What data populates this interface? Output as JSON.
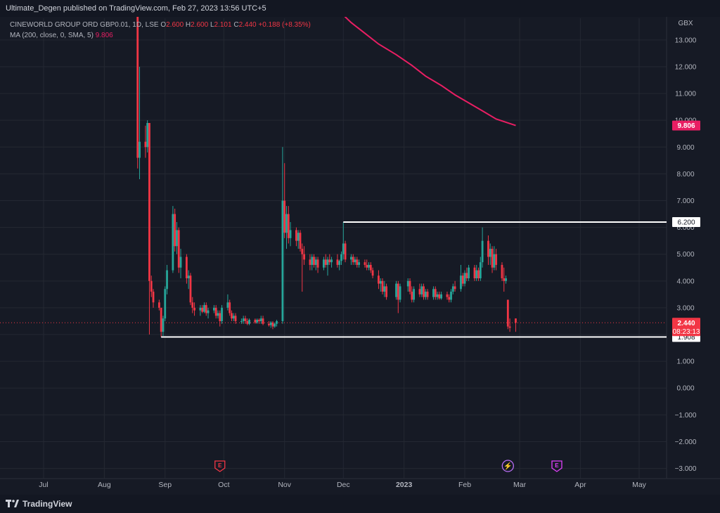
{
  "header": {
    "published_by": "Ultimate_Degen published on TradingView.com, Feb 27, 2023 13:56 UTC+5"
  },
  "legend": {
    "symbol": "CINEWORLD GROUP ORD GBP0.01, 1D, LSE",
    "open_label": "O",
    "open": "2.600",
    "high_label": "H",
    "high": "2.600",
    "low_label": "L",
    "low": "2.101",
    "close_label": "C",
    "close": "2.440",
    "change": "+0.188 (+8.35%)",
    "ma_label": "MA (200, close, 0, SMA, 5)",
    "ma_value": "9.806"
  },
  "footer": {
    "brand": "TradingView"
  },
  "colors": {
    "up": "#26a69a",
    "down": "#f23645",
    "ma": "#e91e63",
    "grid": "#242832",
    "bg": "#161a25"
  },
  "chart_data": {
    "type": "candlestick",
    "currency": "GBX",
    "ylim": [
      -3.3,
      13.6
    ],
    "y_ticks": [
      13,
      12,
      11,
      10,
      9,
      8,
      7,
      6,
      5,
      4,
      3,
      2,
      1,
      0,
      -1,
      -2,
      -3
    ],
    "x_ticks": [
      {
        "label": "Jul",
        "date": "2022-07-01"
      },
      {
        "label": "Aug",
        "date": "2022-08-01"
      },
      {
        "label": "Sep",
        "date": "2022-09-01"
      },
      {
        "label": "Oct",
        "date": "2022-10-01"
      },
      {
        "label": "Nov",
        "date": "2022-11-01"
      },
      {
        "label": "Dec",
        "date": "2022-12-01"
      },
      {
        "label": "2023",
        "date": "2023-01-01"
      },
      {
        "label": "Feb",
        "date": "2023-02-01"
      },
      {
        "label": "Mar",
        "date": "2023-03-01"
      },
      {
        "label": "Apr",
        "date": "2023-04-01"
      },
      {
        "label": "May",
        "date": "2023-05-01"
      }
    ],
    "candles": [
      [
        "2022-08-18",
        14.2,
        15.0,
        8.2,
        8.6
      ],
      [
        "2022-08-19",
        8.6,
        12.0,
        7.8,
        9.2
      ],
      [
        "2022-08-22",
        9.2,
        9.8,
        8.6,
        9.0
      ],
      [
        "2022-08-23",
        9.0,
        10.0,
        8.8,
        9.9
      ],
      [
        "2022-08-24",
        9.9,
        9.9,
        2.0,
        4.0
      ],
      [
        "2022-08-25",
        4.0,
        4.2,
        3.4,
        3.6
      ],
      [
        "2022-08-26",
        3.6,
        3.7,
        3.0,
        3.2
      ],
      [
        "2022-08-29",
        3.2,
        3.3,
        2.9,
        3.0
      ],
      [
        "2022-08-30",
        3.0,
        3.0,
        1.908,
        2.1
      ],
      [
        "2022-08-31",
        2.1,
        2.7,
        1.95,
        2.6
      ],
      [
        "2022-09-01",
        2.6,
        3.8,
        2.5,
        3.7
      ],
      [
        "2022-09-02",
        3.7,
        4.6,
        3.5,
        4.4
      ],
      [
        "2022-09-05",
        4.4,
        6.8,
        4.3,
        6.5
      ],
      [
        "2022-09-06",
        6.5,
        6.7,
        5.1,
        5.3
      ],
      [
        "2022-09-07",
        5.3,
        6.2,
        5.0,
        5.9
      ],
      [
        "2022-09-08",
        5.9,
        6.0,
        4.3,
        4.5
      ],
      [
        "2022-09-09",
        4.5,
        5.2,
        4.1,
        4.9
      ],
      [
        "2022-09-12",
        4.9,
        5.0,
        3.9,
        4.1
      ],
      [
        "2022-09-13",
        4.1,
        4.4,
        3.7,
        4.2
      ],
      [
        "2022-09-14",
        4.2,
        4.3,
        3.1,
        3.2
      ],
      [
        "2022-09-15",
        3.2,
        3.4,
        2.8,
        3.0
      ],
      [
        "2022-09-16",
        3.0,
        3.2,
        2.7,
        2.9
      ],
      [
        "2022-09-19",
        2.9,
        3.1,
        2.7,
        3.0
      ],
      [
        "2022-09-20",
        3.0,
        3.1,
        2.8,
        2.85
      ],
      [
        "2022-09-21",
        2.85,
        3.2,
        2.8,
        3.1
      ],
      [
        "2022-09-22",
        3.1,
        3.2,
        2.7,
        2.8
      ],
      [
        "2022-09-23",
        2.8,
        3.0,
        2.6,
        2.9
      ],
      [
        "2022-09-26",
        2.9,
        3.1,
        2.8,
        3.0
      ],
      [
        "2022-09-27",
        3.0,
        3.1,
        2.6,
        2.7
      ],
      [
        "2022-09-28",
        2.7,
        2.9,
        2.6,
        2.8
      ],
      [
        "2022-09-29",
        2.8,
        2.9,
        2.3,
        2.5
      ],
      [
        "2022-09-30",
        2.5,
        3.1,
        2.4,
        3.0
      ],
      [
        "2022-10-03",
        3.0,
        3.5,
        2.9,
        3.2
      ],
      [
        "2022-10-04",
        3.2,
        3.3,
        2.7,
        2.8
      ],
      [
        "2022-10-05",
        2.8,
        2.9,
        2.5,
        2.6
      ],
      [
        "2022-10-06",
        2.6,
        2.8,
        2.5,
        2.7
      ],
      [
        "2022-10-07",
        2.7,
        2.8,
        2.4,
        2.5
      ],
      [
        "2022-10-10",
        2.5,
        2.6,
        2.4,
        2.5
      ],
      [
        "2022-10-11",
        2.5,
        2.7,
        2.4,
        2.6
      ],
      [
        "2022-10-12",
        2.6,
        2.7,
        2.4,
        2.5
      ],
      [
        "2022-10-13",
        2.5,
        2.6,
        2.35,
        2.4
      ],
      [
        "2022-10-14",
        2.4,
        2.6,
        2.35,
        2.55
      ],
      [
        "2022-10-17",
        2.55,
        2.6,
        2.4,
        2.45
      ],
      [
        "2022-10-18",
        2.45,
        2.6,
        2.4,
        2.55
      ],
      [
        "2022-10-19",
        2.55,
        2.6,
        2.4,
        2.5
      ],
      [
        "2022-10-20",
        2.5,
        2.7,
        2.4,
        2.6
      ],
      [
        "2022-10-21",
        2.6,
        2.7,
        2.35,
        2.4
      ],
      [
        "2022-10-24",
        2.4,
        2.5,
        2.3,
        2.35
      ],
      [
        "2022-10-25",
        2.35,
        2.5,
        2.25,
        2.45
      ],
      [
        "2022-10-26",
        2.45,
        2.5,
        2.2,
        2.3
      ],
      [
        "2022-10-27",
        2.3,
        2.45,
        2.25,
        2.4
      ],
      [
        "2022-10-28",
        2.4,
        2.55,
        2.3,
        2.5
      ],
      [
        "2022-10-31",
        2.5,
        9.0,
        2.4,
        7.0
      ],
      [
        "2022-11-01",
        7.0,
        8.4,
        5.6,
        5.8
      ],
      [
        "2022-11-02",
        5.8,
        6.8,
        5.2,
        6.5
      ],
      [
        "2022-11-03",
        6.5,
        6.8,
        5.4,
        5.6
      ],
      [
        "2022-11-04",
        5.6,
        6.2,
        5.3,
        5.9
      ],
      [
        "2022-11-07",
        5.9,
        6.0,
        5.3,
        5.5
      ],
      [
        "2022-11-08",
        5.5,
        5.9,
        5.2,
        5.8
      ],
      [
        "2022-11-09",
        5.8,
        5.9,
        5.1,
        5.2
      ],
      [
        "2022-11-10",
        5.2,
        5.4,
        3.6,
        5.0
      ],
      [
        "2022-11-11",
        5.0,
        5.3,
        4.6,
        4.8
      ],
      [
        "2022-11-14",
        4.8,
        5.0,
        4.4,
        4.6
      ],
      [
        "2022-11-15",
        4.6,
        5.0,
        4.4,
        4.9
      ],
      [
        "2022-11-16",
        4.9,
        5.0,
        4.5,
        4.6
      ],
      [
        "2022-11-17",
        4.6,
        4.9,
        4.4,
        4.8
      ],
      [
        "2022-11-18",
        4.8,
        4.9,
        4.3,
        4.5
      ],
      [
        "2022-11-21",
        4.5,
        4.9,
        4.4,
        4.8
      ],
      [
        "2022-11-22",
        4.8,
        5.0,
        4.5,
        4.6
      ],
      [
        "2022-11-23",
        4.6,
        4.9,
        4.2,
        4.8
      ],
      [
        "2022-11-24",
        4.8,
        5.0,
        4.6,
        4.7
      ],
      [
        "2022-11-25",
        4.7,
        4.9,
        4.5,
        4.8
      ],
      [
        "2022-11-28",
        4.8,
        5.0,
        4.5,
        4.6
      ],
      [
        "2022-11-29",
        4.6,
        4.8,
        4.4,
        4.75
      ],
      [
        "2022-11-30",
        4.75,
        5.1,
        4.6,
        5.0
      ],
      [
        "2022-12-01",
        5.0,
        6.2,
        4.8,
        5.4
      ],
      [
        "2022-12-02",
        5.4,
        5.5,
        4.7,
        4.8
      ],
      [
        "2022-12-05",
        4.8,
        5.0,
        4.6,
        4.9
      ],
      [
        "2022-12-06",
        4.9,
        5.0,
        4.6,
        4.7
      ],
      [
        "2022-12-07",
        4.7,
        4.9,
        4.6,
        4.8
      ],
      [
        "2022-12-08",
        4.8,
        4.9,
        4.5,
        4.6
      ],
      [
        "2022-12-09",
        4.6,
        4.8,
        4.5,
        4.7
      ],
      [
        "2022-12-12",
        4.7,
        4.8,
        4.5,
        4.6
      ],
      [
        "2022-12-13",
        4.6,
        4.8,
        4.4,
        4.5
      ],
      [
        "2022-12-14",
        4.5,
        4.7,
        4.4,
        4.6
      ],
      [
        "2022-12-15",
        4.6,
        4.7,
        4.3,
        4.4
      ],
      [
        "2022-12-16",
        4.4,
        4.5,
        4.1,
        4.2
      ],
      [
        "2022-12-19",
        4.2,
        4.4,
        3.7,
        3.9
      ],
      [
        "2022-12-20",
        3.9,
        4.1,
        3.6,
        4.0
      ],
      [
        "2022-12-21",
        4.0,
        4.1,
        3.5,
        3.6
      ],
      [
        "2022-12-22",
        3.6,
        4.0,
        3.4,
        3.8
      ],
      [
        "2022-12-23",
        3.8,
        3.9,
        3.3,
        3.4
      ],
      [
        "2022-12-28",
        3.4,
        4.0,
        3.3,
        3.9
      ],
      [
        "2022-12-29",
        3.9,
        4.0,
        2.8,
        3.3
      ],
      [
        "2022-12-30",
        3.3,
        3.9,
        3.2,
        3.8
      ],
      [
        "2023-01-03",
        3.8,
        4.1,
        3.6,
        4.0
      ],
      [
        "2023-01-04",
        4.0,
        4.1,
        3.5,
        3.6
      ],
      [
        "2023-01-05",
        3.6,
        3.8,
        3.2,
        3.3
      ],
      [
        "2023-01-06",
        3.3,
        3.8,
        3.2,
        3.7
      ],
      [
        "2023-01-09",
        3.7,
        3.9,
        3.4,
        3.5
      ],
      [
        "2023-01-10",
        3.5,
        3.9,
        3.4,
        3.8
      ],
      [
        "2023-01-11",
        3.8,
        3.9,
        3.3,
        3.4
      ],
      [
        "2023-01-12",
        3.4,
        3.7,
        3.3,
        3.6
      ],
      [
        "2023-01-13",
        3.6,
        3.7,
        3.3,
        3.4
      ],
      [
        "2023-01-16",
        3.4,
        3.8,
        3.3,
        3.7
      ],
      [
        "2023-01-17",
        3.7,
        3.8,
        3.3,
        3.4
      ],
      [
        "2023-01-18",
        3.4,
        3.6,
        3.3,
        3.5
      ],
      [
        "2023-01-19",
        3.5,
        3.6,
        3.3,
        3.35
      ],
      [
        "2023-01-20",
        3.35,
        3.6,
        3.3,
        3.5
      ],
      [
        "2023-01-23",
        3.5,
        3.6,
        3.3,
        3.4
      ],
      [
        "2023-01-24",
        3.4,
        3.5,
        3.2,
        3.3
      ],
      [
        "2023-01-25",
        3.3,
        3.7,
        3.2,
        3.6
      ],
      [
        "2023-01-26",
        3.6,
        3.9,
        3.5,
        3.8
      ],
      [
        "2023-01-27",
        3.8,
        4.0,
        3.6,
        3.7
      ],
      [
        "2023-01-30",
        3.7,
        4.6,
        3.6,
        4.2
      ],
      [
        "2023-01-31",
        4.2,
        4.3,
        3.8,
        3.9
      ],
      [
        "2023-02-01",
        3.9,
        4.4,
        3.8,
        4.3
      ],
      [
        "2023-02-02",
        4.3,
        4.5,
        4.0,
        4.1
      ],
      [
        "2023-02-03",
        4.1,
        4.6,
        4.0,
        4.5
      ],
      [
        "2023-02-06",
        4.5,
        4.6,
        4.0,
        4.1
      ],
      [
        "2023-02-07",
        4.1,
        4.6,
        4.0,
        4.4
      ],
      [
        "2023-02-08",
        4.4,
        4.5,
        4.0,
        4.1
      ],
      [
        "2023-02-09",
        4.1,
        4.9,
        4.0,
        4.7
      ],
      [
        "2023-02-10",
        4.7,
        6.0,
        4.5,
        5.5
      ],
      [
        "2023-02-13",
        5.5,
        5.7,
        4.6,
        4.9
      ],
      [
        "2023-02-14",
        4.9,
        5.4,
        4.6,
        5.2
      ],
      [
        "2023-02-15",
        5.2,
        5.3,
        4.3,
        4.5
      ],
      [
        "2023-02-16",
        4.5,
        5.3,
        4.4,
        5.0
      ],
      [
        "2023-02-17",
        5.0,
        5.2,
        4.4,
        4.6
      ],
      [
        "2023-02-20",
        4.6,
        4.7,
        4.0,
        4.1
      ],
      [
        "2023-02-21",
        4.1,
        4.5,
        3.6,
        4.0
      ],
      [
        "2023-02-22",
        4.0,
        4.2,
        3.9,
        4.1
      ],
      [
        "2023-02-23",
        3.3,
        3.3,
        2.2,
        2.3
      ],
      [
        "2023-02-24",
        2.3,
        2.6,
        2.1,
        2.252
      ],
      [
        "2023-02-27",
        2.6,
        2.6,
        2.101,
        2.44
      ]
    ],
    "moving_average": {
      "label": "MA (200, close, 0, SMA, 5)",
      "last_value": 9.806,
      "points": [
        [
          "2022-11-30",
          14.0
        ],
        [
          "2022-12-05",
          13.65
        ],
        [
          "2022-12-12",
          13.25
        ],
        [
          "2022-12-19",
          12.85
        ],
        [
          "2022-12-28",
          12.45
        ],
        [
          "2023-01-05",
          12.05
        ],
        [
          "2023-01-12",
          11.65
        ],
        [
          "2023-01-20",
          11.3
        ],
        [
          "2023-01-27",
          10.95
        ],
        [
          "2023-02-03",
          10.65
        ],
        [
          "2023-02-10",
          10.35
        ],
        [
          "2023-02-17",
          10.05
        ],
        [
          "2023-02-27",
          9.806
        ]
      ]
    },
    "horizontal_levels": [
      {
        "value": 6.2,
        "label": "6.200",
        "from_date": "2022-12-01"
      },
      {
        "value": 1.908,
        "label": "1.908",
        "from_date": "2022-08-30"
      }
    ],
    "current_price": {
      "value": 2.44,
      "label": "2.440",
      "countdown": "08:23:13"
    },
    "ma_price_label": "9.806",
    "event_markers": [
      {
        "date": "2022-09-29",
        "type": "earnings",
        "symbol": "E"
      },
      {
        "date": "2023-02-23",
        "type": "dividend-split",
        "symbol": "⚡"
      },
      {
        "date": "2023-03-20",
        "type": "earnings",
        "symbol": "E"
      }
    ]
  }
}
